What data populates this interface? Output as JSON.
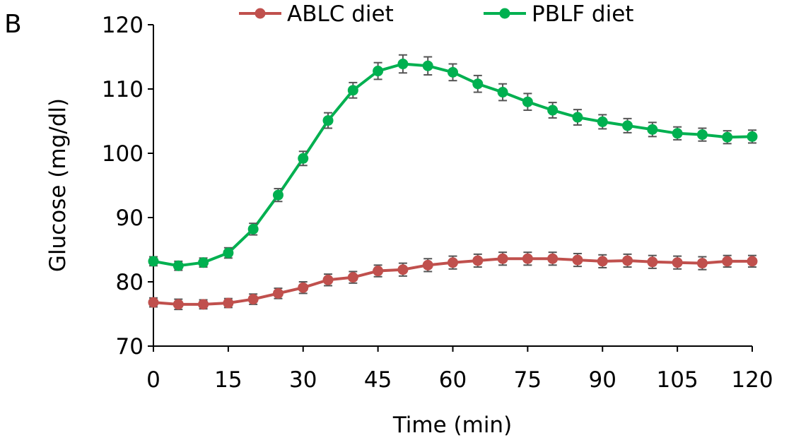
{
  "panel_label": "B",
  "chart_data": {
    "type": "line",
    "title": "",
    "xlabel": "Time (min)",
    "ylabel": "Glucose (mg/dl)",
    "xlim": [
      0,
      120
    ],
    "ylim": [
      70,
      120
    ],
    "x_ticks": [
      0,
      15,
      30,
      45,
      60,
      75,
      90,
      105,
      120
    ],
    "y_ticks": [
      70,
      80,
      90,
      100,
      110,
      120
    ],
    "grid": false,
    "legend": "top",
    "x": [
      0,
      5,
      10,
      15,
      20,
      25,
      30,
      35,
      40,
      45,
      50,
      55,
      60,
      65,
      70,
      75,
      80,
      85,
      90,
      95,
      100,
      105,
      110,
      115,
      120
    ],
    "series": [
      {
        "name": "ABLC diet",
        "color": "#c0504d",
        "values": [
          76.8,
          76.5,
          76.5,
          76.7,
          77.3,
          78.2,
          79.1,
          80.3,
          80.7,
          81.7,
          81.9,
          82.6,
          83.0,
          83.3,
          83.6,
          83.6,
          83.6,
          83.4,
          83.2,
          83.3,
          83.1,
          83.0,
          82.9,
          83.2,
          83.2
        ],
        "errors": [
          0.7,
          0.8,
          0.7,
          0.7,
          0.8,
          0.8,
          0.9,
          0.9,
          0.9,
          0.9,
          1.0,
          1.0,
          1.0,
          1.0,
          1.0,
          1.0,
          1.0,
          1.0,
          1.0,
          1.0,
          1.0,
          1.0,
          1.0,
          0.9,
          0.9
        ]
      },
      {
        "name": "PBLF diet",
        "color": "#00b050",
        "values": [
          83.2,
          82.5,
          83.0,
          84.5,
          88.2,
          93.5,
          99.2,
          105.1,
          109.8,
          112.8,
          113.9,
          113.6,
          112.6,
          110.8,
          109.5,
          108.0,
          106.7,
          105.6,
          104.9,
          104.3,
          103.7,
          103.1,
          102.9,
          102.5,
          102.6
        ],
        "errors": [
          0.7,
          0.7,
          0.7,
          0.8,
          0.9,
          1.0,
          1.1,
          1.2,
          1.2,
          1.3,
          1.4,
          1.4,
          1.3,
          1.3,
          1.3,
          1.3,
          1.2,
          1.2,
          1.1,
          1.1,
          1.1,
          1.0,
          1.0,
          1.0,
          1.0
        ]
      }
    ]
  }
}
